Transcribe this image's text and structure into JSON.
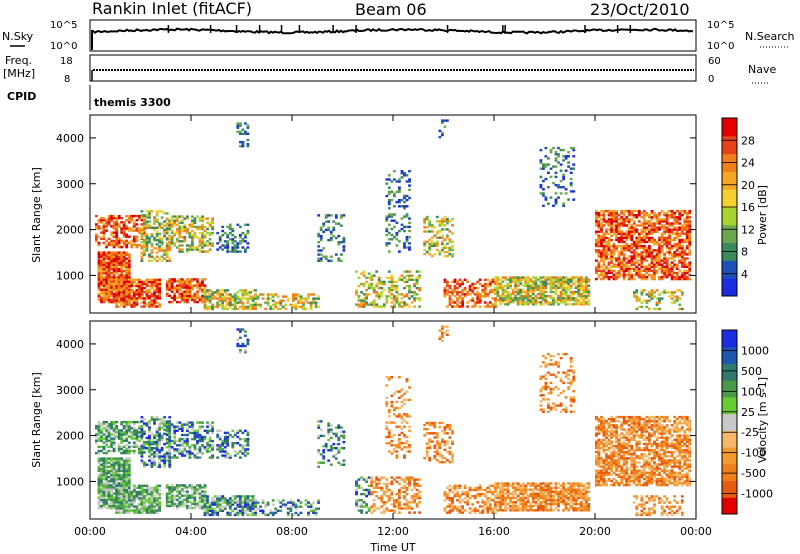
{
  "header": {
    "station": "Rankin Inlet (fitACF)",
    "beam": "Beam 06",
    "date": "23/Oct/2010"
  },
  "strip1": {
    "left_label": "N.Sky",
    "right_label": "N.Search",
    "left_ticks": [
      "10^5",
      "10^0"
    ],
    "right_ticks": [
      "10^5",
      "10^0"
    ]
  },
  "strip2": {
    "left_label_1": "Freq.",
    "left_label_2": "[MHz]",
    "right_label": "Nave",
    "left_ticks": [
      "18",
      "8"
    ],
    "right_ticks": [
      "60",
      "0"
    ]
  },
  "cpid": {
    "label": "CPID",
    "value": "themis 3300"
  },
  "x_axis": {
    "label": "Time UT",
    "ticks": [
      "00:00",
      "04:00",
      "08:00",
      "12:00",
      "16:00",
      "20:00",
      "00:00"
    ]
  },
  "power_panel": {
    "ylabel": "Slant Range [km]",
    "yticks": [
      "1000",
      "2000",
      "3000",
      "4000"
    ],
    "colorbar_label": "Power [dB]",
    "colorbar_ticks": [
      "4",
      "8",
      "12",
      "16",
      "20",
      "24",
      "28"
    ],
    "colors": [
      "#1a2de0",
      "#1f4fb5",
      "#3a8a5a",
      "#6aa84f",
      "#a8d432",
      "#f5d031",
      "#f5a623",
      "#f07f1a",
      "#e8401a",
      "#e00000"
    ]
  },
  "velocity_panel": {
    "ylabel": "Slant Range [km]",
    "yticks": [
      "1000",
      "2000",
      "3000",
      "4000"
    ],
    "colorbar_label": "Velocity [m s-1]",
    "colorbar_ticks": [
      "1000",
      "500",
      "100",
      "25",
      "-25",
      "-100",
      "-500",
      "-1000"
    ],
    "colors": [
      "#1a2de0",
      "#1f55b0",
      "#2f7a6a",
      "#4a9a4a",
      "#66cc33",
      "#c8c8c8",
      "#f5b86a",
      "#f59a30",
      "#f07f1a",
      "#e85a10",
      "#e00000"
    ]
  },
  "chart_data": {
    "type": "heatmap",
    "x_range_hours": [
      0,
      24
    ],
    "y_range_km": [
      180,
      4500
    ],
    "panels": [
      "Power [dB]",
      "Velocity [m s-1]"
    ],
    "power_scale": [
      0,
      30
    ],
    "velocity_scale": [
      -1000,
      1000
    ]
  }
}
